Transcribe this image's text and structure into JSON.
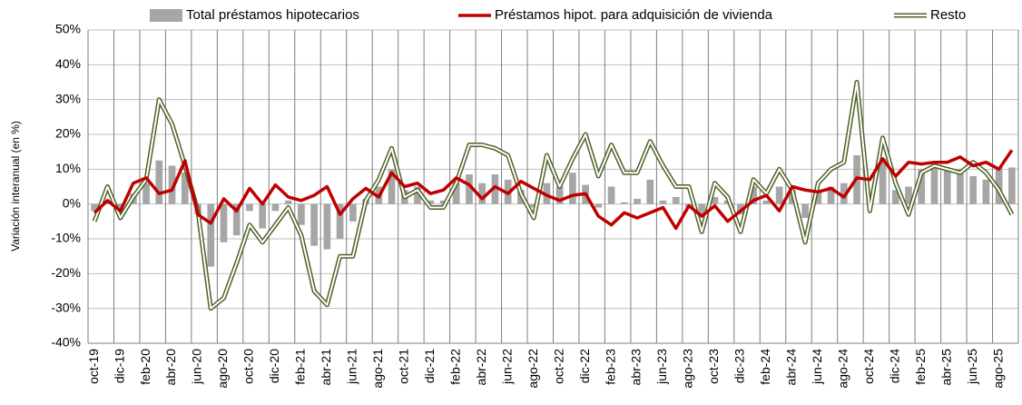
{
  "chart_data": {
    "type": "bar-line",
    "y_label": "Variación interanual (en %)",
    "categories": [
      "oct-19",
      null,
      "dic-19",
      null,
      "feb-20",
      null,
      "abr-20",
      null,
      "jun-20",
      null,
      "ago-20",
      null,
      "oct-20",
      null,
      "dic-20",
      null,
      "feb-21",
      null,
      "abr-21",
      null,
      "jun-21",
      null,
      "ago-21",
      null,
      "oct-21",
      null,
      "dic-21",
      null,
      "feb-22",
      null,
      "abr-22",
      null,
      "jun-22",
      null,
      "ago-22",
      null,
      "oct-22",
      null,
      "dic-22",
      null,
      "feb-23",
      null,
      "abr-23",
      null,
      "jun-23",
      null,
      "ago-23",
      null,
      "oct-23",
      null,
      "dic-23",
      null,
      "feb-24",
      null,
      "abr-24",
      null,
      "jun-24",
      null,
      "ago-24",
      null,
      "oct-24",
      null,
      "dic-24",
      null,
      "feb-25",
      null,
      "abr-25",
      null,
      "jun-25",
      null,
      "ago-25",
      null
    ],
    "series": [
      {
        "name": "Total préstamos hipotecarios",
        "kind": "bar",
        "color": "#a6a6a6",
        "values": [
          -2,
          0.5,
          -1.5,
          3,
          6,
          12.5,
          11,
          9,
          -3,
          -18,
          -11,
          -9,
          -2,
          -7,
          -2,
          1,
          -6,
          -12,
          -13,
          -10,
          -5,
          1.5,
          5,
          10,
          4,
          5,
          1,
          1,
          6,
          8.5,
          6,
          8.5,
          7,
          4,
          -1,
          6,
          5,
          9,
          5.5,
          -1,
          5,
          0.5,
          1.5,
          7,
          1,
          2,
          -1,
          -3,
          2,
          1,
          -3,
          5,
          1,
          5,
          4,
          -4,
          4,
          5,
          6,
          14,
          3,
          13,
          4,
          5,
          10,
          11,
          10,
          10,
          8,
          7,
          10.5,
          10.5
        ]
      },
      {
        "name": "Préstamos hipot. para adquisición de vivienda",
        "kind": "line",
        "color": "#c00000",
        "values": [
          -2.5,
          1,
          -2,
          6,
          7.5,
          3,
          4,
          12.5,
          -3,
          -5.5,
          1.5,
          -2,
          4.5,
          0,
          5.5,
          2,
          1,
          2.5,
          5,
          -3,
          1.5,
          4.5,
          2,
          9,
          5,
          6,
          3,
          4,
          7.5,
          5.5,
          1.5,
          5,
          3,
          6.5,
          4.5,
          2.5,
          1,
          2.5,
          3,
          -3.5,
          -6,
          -2.5,
          -4,
          -2.5,
          -1,
          -7,
          -0.5,
          -3.5,
          -0.5,
          -5,
          -2,
          1,
          2.5,
          -2,
          5,
          4,
          3.5,
          4.5,
          2,
          7.5,
          7,
          13,
          8,
          12,
          11.5,
          12,
          12,
          13.5,
          11,
          12,
          10,
          15.5
        ]
      },
      {
        "name": "Resto",
        "kind": "double-line",
        "color": "#4f6228",
        "values": [
          -5,
          5,
          -4,
          2,
          7,
          30,
          23,
          11,
          -2,
          -30,
          -27,
          -17,
          -6,
          -11,
          -6,
          -1,
          -9,
          -25,
          -29,
          -15,
          -15,
          1,
          7,
          16,
          2,
          4,
          -1,
          -1,
          6,
          17,
          17,
          16,
          14,
          3,
          -4,
          14,
          5,
          13,
          20,
          8,
          17,
          9,
          9,
          18,
          11,
          5,
          5,
          -8,
          6,
          2,
          -8,
          7,
          3,
          10,
          4,
          -11,
          6,
          10,
          12,
          35,
          -2,
          19,
          6,
          -3,
          9,
          11,
          10,
          9,
          12,
          9,
          4,
          -3
        ]
      }
    ],
    "ylim": [
      -40,
      50
    ],
    "yticks": [
      {
        "value": -40,
        "label": "-40%"
      },
      {
        "value": -30,
        "label": "-30%"
      },
      {
        "value": -20,
        "label": "-20%"
      },
      {
        "value": -10,
        "label": "-10%"
      },
      {
        "value": 0,
        "label": "0%"
      },
      {
        "value": 10,
        "label": "10%"
      },
      {
        "value": 20,
        "label": "20%"
      },
      {
        "value": 30,
        "label": "30%"
      },
      {
        "value": 40,
        "label": "40%"
      },
      {
        "value": 50,
        "label": "50%"
      }
    ],
    "grid": true,
    "legend": "top"
  }
}
